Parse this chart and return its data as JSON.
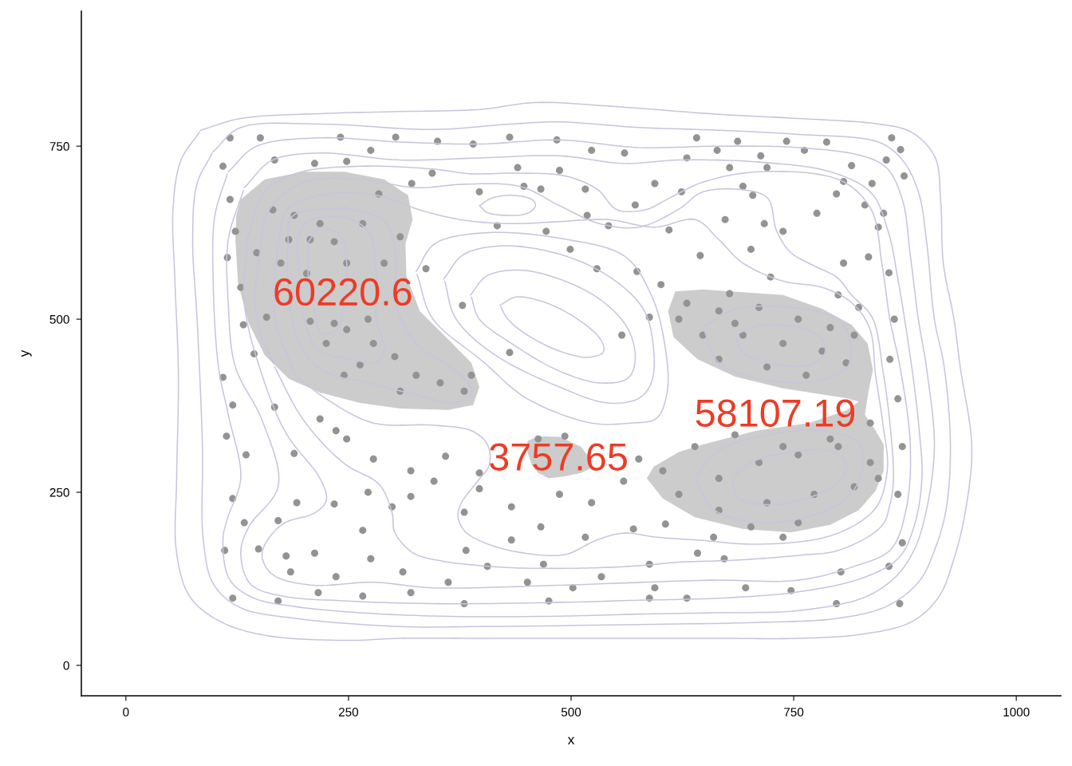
{
  "chart_data": {
    "type": "scatter",
    "xlabel": "x",
    "ylabel": "y",
    "xlim": [
      -50,
      1050
    ],
    "ylim": [
      -44,
      945
    ],
    "xticks": [
      0,
      250,
      500,
      750,
      1000
    ],
    "yticks": [
      0,
      250,
      500,
      750
    ],
    "annotations": [
      "60220.6",
      "3757.65",
      "58107.19"
    ],
    "series": [
      {
        "type": "area",
        "color": "#cccccc",
        "x": [
          129,
          156,
          200,
          245,
          290,
          317,
          322,
          314,
          315,
          330,
          362,
          388,
          397,
          390,
          362,
          308,
          263,
          218,
          183,
          156,
          138,
          126,
          123,
          124,
          129
        ],
        "values": [
          673,
          702,
          713,
          713,
          702,
          679,
          644,
          609,
          563,
          512,
          471,
          437,
          402,
          376,
          369,
          371,
          379,
          394,
          414,
          448,
          494,
          552,
          615,
          650,
          673
        ]
      },
      {
        "type": "area",
        "color": "#cccccc",
        "x": [
          451,
          463,
          487,
          511,
          523,
          523,
          511,
          493,
          475,
          463,
          456,
          451,
          451
        ],
        "values": [
          324,
          331,
          330,
          316,
          296,
          285,
          278,
          273,
          270,
          278,
          289,
          308,
          324
        ]
      },
      {
        "type": "area",
        "color": "#cccccc",
        "x": [
          617,
          648,
          738,
          782,
          815,
          833,
          839,
          834,
          830,
          842,
          851,
          851,
          842,
          823,
          791,
          747,
          693,
          639,
          603,
          585,
          593,
          621,
          648,
          708,
          767,
          809,
          823,
          809,
          738,
          684,
          642,
          615,
          609,
          617
        ],
        "values": [
          540,
          543,
          535,
          515,
          492,
          465,
          427,
          396,
          362,
          339,
          319,
          281,
          252,
          224,
          203,
          192,
          197,
          214,
          241,
          270,
          287,
          308,
          319,
          339,
          350,
          368,
          381,
          386,
          400,
          417,
          442,
          474,
          512,
          540
        ]
      },
      {
        "color": "#939393",
        "marker": "circle",
        "x": [
          117,
          151,
          241,
          303,
          109,
          167,
          212,
          248,
          275,
          344,
          321,
          117,
          123,
          114,
          147,
          165,
          189,
          207,
          234,
          248,
          266,
          284,
          308,
          290,
          248,
          278,
          302,
          207,
          158,
          144,
          132,
          337,
          203,
          234,
          225,
          263,
          183,
          218,
          174,
          272,
          129,
          326,
          353,
          380,
          308,
          388,
          245,
          350,
          390,
          431,
          484,
          523,
          560,
          641,
          630,
          440,
          487,
          594,
          397,
          466,
          516,
          572,
          624,
          417,
          472,
          518,
          542,
          610,
          645,
          499,
          529,
          574,
          601,
          447,
          378,
          431,
          557,
          588,
          687,
          742,
          787,
          860,
          870,
          664,
          762,
          713,
          678,
          720,
          815,
          854,
          874,
          806,
          838,
          693,
          798,
          830,
          851,
          704,
          673,
          717,
          776,
          738,
          845,
          834,
          702,
          806,
          857,
          724,
          800,
          678,
          630,
          666,
          711,
          755,
          791,
          818,
          648,
          693,
          738,
          782,
          809,
          666,
          720,
          764,
          621,
          684,
          823,
          603,
          639,
          684,
          791,
          836,
          621,
          666,
          711,
          755,
          800,
          836,
          666,
          720,
          773,
          818,
          702,
          755,
          845,
          738,
          863,
          858,
          867,
          872,
          867,
          872,
          660,
          738,
          803,
          857,
          869,
          798,
          747,
          696,
          672,
          109,
          120,
          167,
          218,
          113,
          135,
          189,
          236,
          120,
          133,
          111,
          149,
          171,
          192,
          234,
          212,
          180,
          185,
          236,
          275,
          266,
          299,
          320,
          311,
          120,
          171,
          216,
          266,
          320,
          248,
          278,
          320,
          272,
          346,
          359,
          397,
          397,
          380,
          433,
          487,
          523,
          559,
          576,
          463,
          493,
          466,
          433,
          516,
          570,
          606,
          382,
          406,
          469,
          534,
          588,
          642,
          362,
          451,
          502,
          594,
          380,
          475,
          588,
          630
        ],
        "values": [
          762,
          762,
          763,
          763,
          721,
          730,
          725,
          728,
          744,
          711,
          696,
          673,
          627,
          589,
          596,
          658,
          650,
          615,
          612,
          581,
          638,
          681,
          619,
          581,
          485,
          465,
          446,
          497,
          503,
          450,
          492,
          573,
          566,
          494,
          465,
          434,
          615,
          638,
          581,
          500,
          546,
          419,
          408,
          396,
          396,
          419,
          419,
          757,
          753,
          763,
          759,
          744,
          740,
          762,
          733,
          719,
          715,
          696,
          684,
          688,
          688,
          665,
          684,
          635,
          627,
          650,
          635,
          629,
          592,
          601,
          573,
          569,
          550,
          692,
          520,
          452,
          477,
          503,
          757,
          757,
          756,
          762,
          745,
          744,
          744,
          736,
          719,
          719,
          722,
          730,
          707,
          699,
          696,
          692,
          681,
          665,
          653,
          679,
          644,
          638,
          653,
          627,
          633,
          590,
          601,
          581,
          567,
          561,
          535,
          537,
          523,
          512,
          517,
          500,
          488,
          477,
          477,
          477,
          465,
          454,
          437,
          442,
          431,
          419,
          500,
          494,
          517,
          281,
          316,
          333,
          327,
          350,
          247,
          270,
          293,
          304,
          316,
          293,
          224,
          235,
          247,
          258,
          200,
          206,
          270,
          316,
          500,
          442,
          385,
          316,
          247,
          177,
          185,
          185,
          135,
          143,
          89,
          89,
          108,
          112,
          154,
          416,
          376,
          373,
          356,
          331,
          304,
          306,
          339,
          241,
          206,
          166,
          168,
          209,
          235,
          233,
          162,
          158,
          135,
          128,
          154,
          195,
          229,
          244,
          135,
          97,
          93,
          105,
          100,
          105,
          327,
          298,
          281,
          250,
          266,
          302,
          278,
          255,
          221,
          229,
          247,
          235,
          266,
          298,
          327,
          331,
          200,
          181,
          185,
          197,
          204,
          166,
          143,
          146,
          128,
          146,
          162,
          120,
          120,
          112,
          112,
          89,
          93,
          97,
          97
        ]
      },
      {
        "type": "line",
        "color": "#c8c4de",
        "x": [
          84,
          129,
          218,
          308,
          397,
          460,
          541,
          666,
          755,
          845,
          881,
          908,
          915,
          918,
          930,
          937,
          950,
          943,
          930,
          912,
          881,
          827,
          755,
          666,
          576,
          487,
          397,
          308,
          248,
          158,
          108,
          73,
          57,
          57,
          59,
          55,
          53,
          62,
          83
        ],
        "values": [
          773,
          790,
          797,
          800,
          803,
          813,
          808,
          796,
          790,
          782,
          771,
          736,
          673,
          581,
          500,
          431,
          316,
          224,
          154,
          97,
          62,
          45,
          39,
          39,
          39,
          39,
          39,
          39,
          36,
          43,
          62,
          97,
          162,
          270,
          419,
          558,
          661,
          730,
          771
        ]
      },
      {
        "type": "line",
        "color": "#c8c4de",
        "x": [
          98,
          129,
          218,
          344,
          433,
          487,
          576,
          666,
          755,
          845,
          872,
          890,
          899,
          908,
          919,
          926,
          921,
          908,
          890,
          854,
          800,
          711,
          576,
          397,
          308,
          189,
          129,
          99,
          87,
          86,
          80,
          75,
          80,
          97
        ],
        "values": [
          742,
          777,
          782,
          774,
          782,
          785,
          777,
          773,
          767,
          756,
          730,
          684,
          615,
          500,
          431,
          316,
          224,
          166,
          120,
          85,
          68,
          62,
          59,
          56,
          56,
          68,
          83,
          116,
          181,
          316,
          500,
          615,
          696,
          740
        ]
      },
      {
        "type": "line",
        "color": "#c8c4de",
        "x": [
          115,
          147,
          218,
          308,
          397,
          487,
          576,
          666,
          755,
          827,
          854,
          872,
          881,
          890,
          899,
          908,
          899,
          885,
          863,
          827,
          755,
          666,
          576,
          487,
          353,
          263,
          189,
          144,
          117,
          109,
          114,
          129,
          115,
          104,
          98,
          100,
          114
        ],
        "values": [
          713,
          750,
          762,
          756,
          753,
          759,
          748,
          750,
          748,
          736,
          719,
          673,
          592,
          500,
          431,
          316,
          224,
          166,
          126,
          97,
          79,
          76,
          74,
          71,
          71,
          76,
          85,
          97,
          123,
          181,
          212,
          270,
          362,
          431,
          558,
          650,
          710
        ]
      },
      {
        "type": "line",
        "color": "#c8c4de",
        "x": [
          133,
          165,
          218,
          308,
          397,
          487,
          559,
          621,
          711,
          791,
          836,
          856,
          867,
          883,
          891,
          894,
          885,
          867,
          827,
          755,
          666,
          576,
          487,
          353,
          248,
          176,
          141,
          129,
          138,
          171,
          153,
          123,
          115,
          115,
          132
        ],
        "values": [
          690,
          730,
          740,
          730,
          733,
          736,
          725,
          730,
          727,
          713,
          684,
          627,
          558,
          427,
          339,
          270,
          200,
          154,
          126,
          106,
          97,
          94,
          91,
          89,
          93,
          100,
          116,
          162,
          200,
          258,
          354,
          431,
          523,
          615,
          686
        ]
      },
      {
        "type": "line",
        "color": "#c8c4de",
        "x": [
          136,
          156,
          192,
          263,
          344,
          388,
          433,
          493,
          529,
          552,
          583,
          612,
          648,
          711,
          800,
          836,
          849,
          858,
          870,
          881,
          876,
          858,
          818,
          755,
          657,
          493,
          344,
          278,
          207,
          165,
          153,
          176,
          212,
          225,
          218,
          180,
          151,
          133,
          136
        ],
        "values": [
          615,
          684,
          711,
          721,
          717,
          710,
          711,
          707,
          688,
          658,
          658,
          676,
          698,
          713,
          702,
          661,
          581,
          500,
          427,
          316,
          224,
          166,
          143,
          123,
          123,
          116,
          112,
          120,
          116,
          131,
          162,
          204,
          220,
          238,
          270,
          335,
          427,
          523,
          610
        ]
      },
      {
        "type": "line",
        "color": "#c8c4de",
        "x": [
          167,
          194,
          218,
          248,
          284,
          299,
          302,
          323,
          353,
          390,
          433,
          483,
          532,
          577,
          621,
          666,
          711,
          756,
          800,
          848,
          858,
          862,
          858,
          850,
          838,
          815,
          798,
          773,
          747,
          731,
          720,
          693,
          648,
          621,
          576,
          532,
          487,
          442,
          380,
          326,
          263,
          200,
          160,
          151,
          145,
          153,
          166
        ],
        "values": [
          431,
          365,
          325,
          289,
          262,
          220,
          192,
          162,
          151,
          145,
          141,
          140,
          141,
          144,
          149,
          151,
          154,
          159,
          166,
          200,
          232,
          270,
          350,
          427,
          503,
          535,
          561,
          577,
          596,
          627,
          676,
          687,
          684,
          659,
          633,
          638,
          664,
          692,
          695,
          690,
          702,
          698,
          656,
          600,
          523,
          475,
          436
        ]
      },
      {
        "type": "line",
        "color": "#c8c4de",
        "x": [
          190,
          225,
          278,
          344,
          388,
          406,
          408,
          395,
          377,
          373,
          382,
          409,
          448,
          493,
          529,
          559,
          597,
          642,
          711,
          791,
          840,
          855,
          850,
          842,
          835,
          814,
          782,
          738,
          693,
          666,
          639,
          594,
          541,
          487,
          433,
          380,
          335,
          281,
          227,
          183,
          172,
          168,
          189
        ],
        "values": [
          419,
          385,
          350,
          347,
          339,
          319,
          289,
          266,
          235,
          215,
          192,
          174,
          162,
          160,
          181,
          191,
          185,
          181,
          175,
          187,
          224,
          281,
          350,
          419,
          488,
          525,
          546,
          555,
          581,
          615,
          644,
          633,
          644,
          641,
          638,
          643,
          656,
          679,
          681,
          661,
          615,
          500,
          423
        ]
      },
      {
        "type": "line",
        "color": "#c8c4de",
        "x": [
          326,
          348,
          406,
          487,
          559,
          590,
          605,
          608,
          595,
          567,
          523,
          451,
          400,
          345,
          327
        ],
        "values": [
          569,
          610,
          625,
          617,
          592,
          535,
          465,
          396,
          356,
          350,
          350,
          385,
          440,
          500,
          565
        ]
      },
      {
        "type": "line",
        "color": "#c8c4de",
        "x": [
          357,
          380,
          424,
          487,
          541,
          580,
          592,
          590,
          575,
          541,
          487,
          415,
          371,
          358
        ],
        "values": [
          558,
          594,
          606,
          594,
          563,
          517,
          465,
          408,
          385,
          379,
          402,
          448,
          500,
          555
        ]
      },
      {
        "type": "line",
        "color": "#c8c4de",
        "x": [
          387,
          406,
          442,
          487,
          532,
          563,
          572,
          563,
          532,
          487,
          433,
          397,
          388
        ],
        "values": [
          535,
          563,
          571,
          558,
          529,
          488,
          442,
          414,
          408,
          425,
          465,
          500,
          532
        ]
      },
      {
        "type": "line",
        "color": "#c8c4de",
        "x": [
          420,
          438,
          469,
          505,
          533,
          536,
          518,
          487,
          451,
          429,
          421
        ],
        "values": [
          520,
          532,
          525,
          502,
          471,
          452,
          445,
          454,
          477,
          500,
          518
        ]
      },
      {
        "type": "line",
        "color": "#c8c4de",
        "x": [
          397,
          411,
          433,
          456,
          460,
          451,
          429,
          406,
          398
        ],
        "values": [
          664,
          675,
          679,
          673,
          664,
          653,
          650,
          654,
          663
        ]
      },
      {
        "type": "line",
        "color": "#c8c4de",
        "x": [
          205,
          218,
          241,
          248,
          245,
          236,
          220,
          212,
          205,
          205
        ],
        "values": [
          612,
          632,
          621,
          581,
          523,
          483,
          480,
          510,
          558,
          609
        ]
      },
      {
        "type": "line",
        "color": "#c8c4de",
        "x": [
          192,
          205,
          245,
          272,
          281,
          281,
          290,
          281,
          254,
          218,
          203,
          195,
          192
        ],
        "values": [
          615,
          642,
          647,
          627,
          569,
          500,
          454,
          437,
          442,
          454,
          488,
          558,
          612
        ]
      },
      {
        "type": "line",
        "color": "#c8c4de",
        "x": [
          245,
          290,
          303,
          303,
          326,
          371,
          388,
          371,
          326,
          272,
          222,
          195,
          183,
          182,
          188,
          242
        ],
        "values": [
          662,
          642,
          592,
          523,
          465,
          425,
          396,
          379,
          391,
          408,
          425,
          465,
          535,
          604,
          650,
          661
        ]
      },
      {
        "type": "line",
        "color": "#c8c4de",
        "x": [
          684,
          711,
          755,
          782,
          784,
          764,
          720,
          693,
          685
        ],
        "values": [
          477,
          491,
          488,
          471,
          448,
          433,
          437,
          452,
          475
        ]
      },
      {
        "type": "line",
        "color": "#c8c4de",
        "x": [
          648,
          684,
          747,
          800,
          814,
          809,
          773,
          711,
          666,
          649
        ],
        "values": [
          488,
          514,
          517,
          500,
          465,
          429,
          410,
          414,
          437,
          485
        ]
      },
      {
        "type": "line",
        "color": "#c8c4de",
        "x": [
          681,
          702,
          747,
          791,
          809,
          800,
          764,
          720,
          688,
          681
        ],
        "values": [
          270,
          293,
          308,
          310,
          293,
          264,
          241,
          232,
          241,
          267
        ]
      },
      {
        "type": "line",
        "color": "#c8c4de",
        "x": [
          639,
          666,
          720,
          782,
          823,
          827,
          809,
          764,
          711,
          661,
          640
        ],
        "values": [
          270,
          310,
          333,
          339,
          321,
          281,
          241,
          214,
          206,
          224,
          267
        ]
      }
    ]
  }
}
